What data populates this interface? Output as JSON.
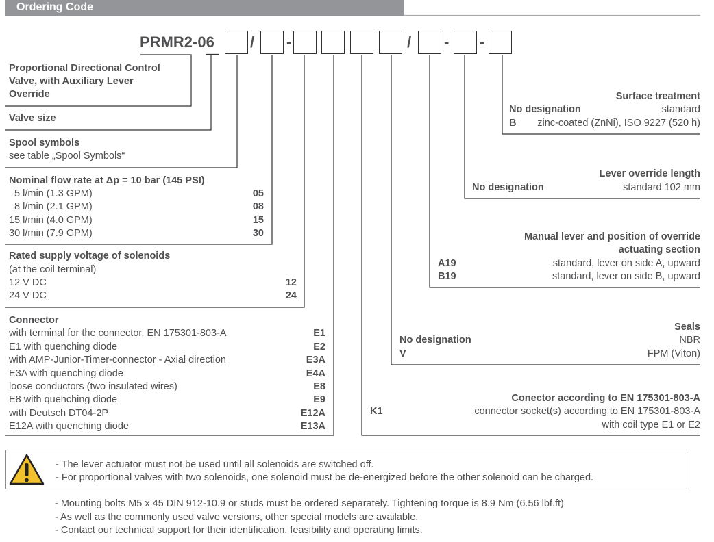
{
  "header": {
    "title": "Ordering Code"
  },
  "code": {
    "prefix": "PRMR2-06",
    "sep1": "/",
    "sep2": "-",
    "sep3": "/",
    "sep4": "-",
    "sep5": "-"
  },
  "left": {
    "type": {
      "lines": [
        "Proportional Directional Control",
        "Valve, with Auxiliary Lever",
        "Override"
      ]
    },
    "size": {
      "title": "Valve size"
    },
    "spool": {
      "title": "Spool symbols",
      "desc": "see table „Spool Symbols“"
    },
    "flow": {
      "title": "Nominal flow rate at Δp = 10 bar (145 PSI)",
      "rows": [
        {
          "label": "  5 l/min (1.3 GPM)",
          "code": "05"
        },
        {
          "label": "  8 l/min (2.1 GPM)",
          "code": "08"
        },
        {
          "label": "15 l/min (4.0 GPM)",
          "code": "15"
        },
        {
          "label": "30 l/min (7.9 GPM)",
          "code": "30"
        }
      ]
    },
    "voltage": {
      "title": "Rated supply voltage of solenoids",
      "desc": "(at the coil terminal)",
      "rows": [
        {
          "label": "12 V DC",
          "code": "12"
        },
        {
          "label": "24 V DC",
          "code": "24"
        }
      ]
    },
    "connector": {
      "title": "Connector",
      "rows": [
        {
          "label": "with terminal for the connector, EN 175301-803-A",
          "code": "E1"
        },
        {
          "label": "E1 with quenching diode",
          "code": "E2"
        },
        {
          "label": "with AMP-Junior-Timer-connector - Axial direction",
          "code": "E3A"
        },
        {
          "label": "E3A with quenching diode",
          "code": "E4A"
        },
        {
          "label": "loose conductors (two insulated wires)",
          "code": "E8"
        },
        {
          "label": "E8 with quenching diode",
          "code": "E9"
        },
        {
          "label": "with Deutsch DT04-2P",
          "code": "E12A"
        },
        {
          "label": "E12A with quenching diode",
          "code": "E13A"
        }
      ]
    }
  },
  "right": {
    "surface": {
      "title": "Surface treatment",
      "rows": [
        {
          "code": "No designation",
          "label": "standard"
        },
        {
          "code": "B",
          "label": "zinc-coated (ZnNi), ISO 9227 (520 h)"
        }
      ]
    },
    "length": {
      "title": "Lever override length",
      "rows": [
        {
          "code": "No designation",
          "label": "standard 102 mm"
        }
      ]
    },
    "lever": {
      "title1": "Manual lever and position of override",
      "title2": "actuating section",
      "rows": [
        {
          "code": "A19",
          "label": "standard, lever on side A, upward"
        },
        {
          "code": "B19",
          "label": "standard, lever on side B, upward"
        }
      ]
    },
    "seals": {
      "title": "Seals",
      "rows": [
        {
          "code": "No designation",
          "label": "NBR"
        },
        {
          "code": "V",
          "label": "FPM (Viton)"
        }
      ]
    },
    "socket": {
      "title": "Conector according to EN 175301-803-A",
      "code": "K1",
      "line1": "connector socket(s) according to EN 175301-803-A",
      "line2": "with coil type E1 or E2"
    }
  },
  "warning": {
    "icon": "warning-triangle-icon",
    "icon_color": "#f2c12e",
    "lines": [
      "- The lever actuator must not be used until all solenoids are switched off.",
      "- For proportional valves with two solenoids, one solenoid must be de-energized before the other solenoid can be charged."
    ]
  },
  "notes": [
    "- Mounting bolts M5 x 45 DIN 912-10.9 or studs must be ordered separately. Tightening torque is 8.9 Nm (6.56 lbf.ft)",
    "- As well as the commonly used valve versions, other special models are available.",
    "- Contact our technical support for their identification, feasibility and operating limits."
  ]
}
